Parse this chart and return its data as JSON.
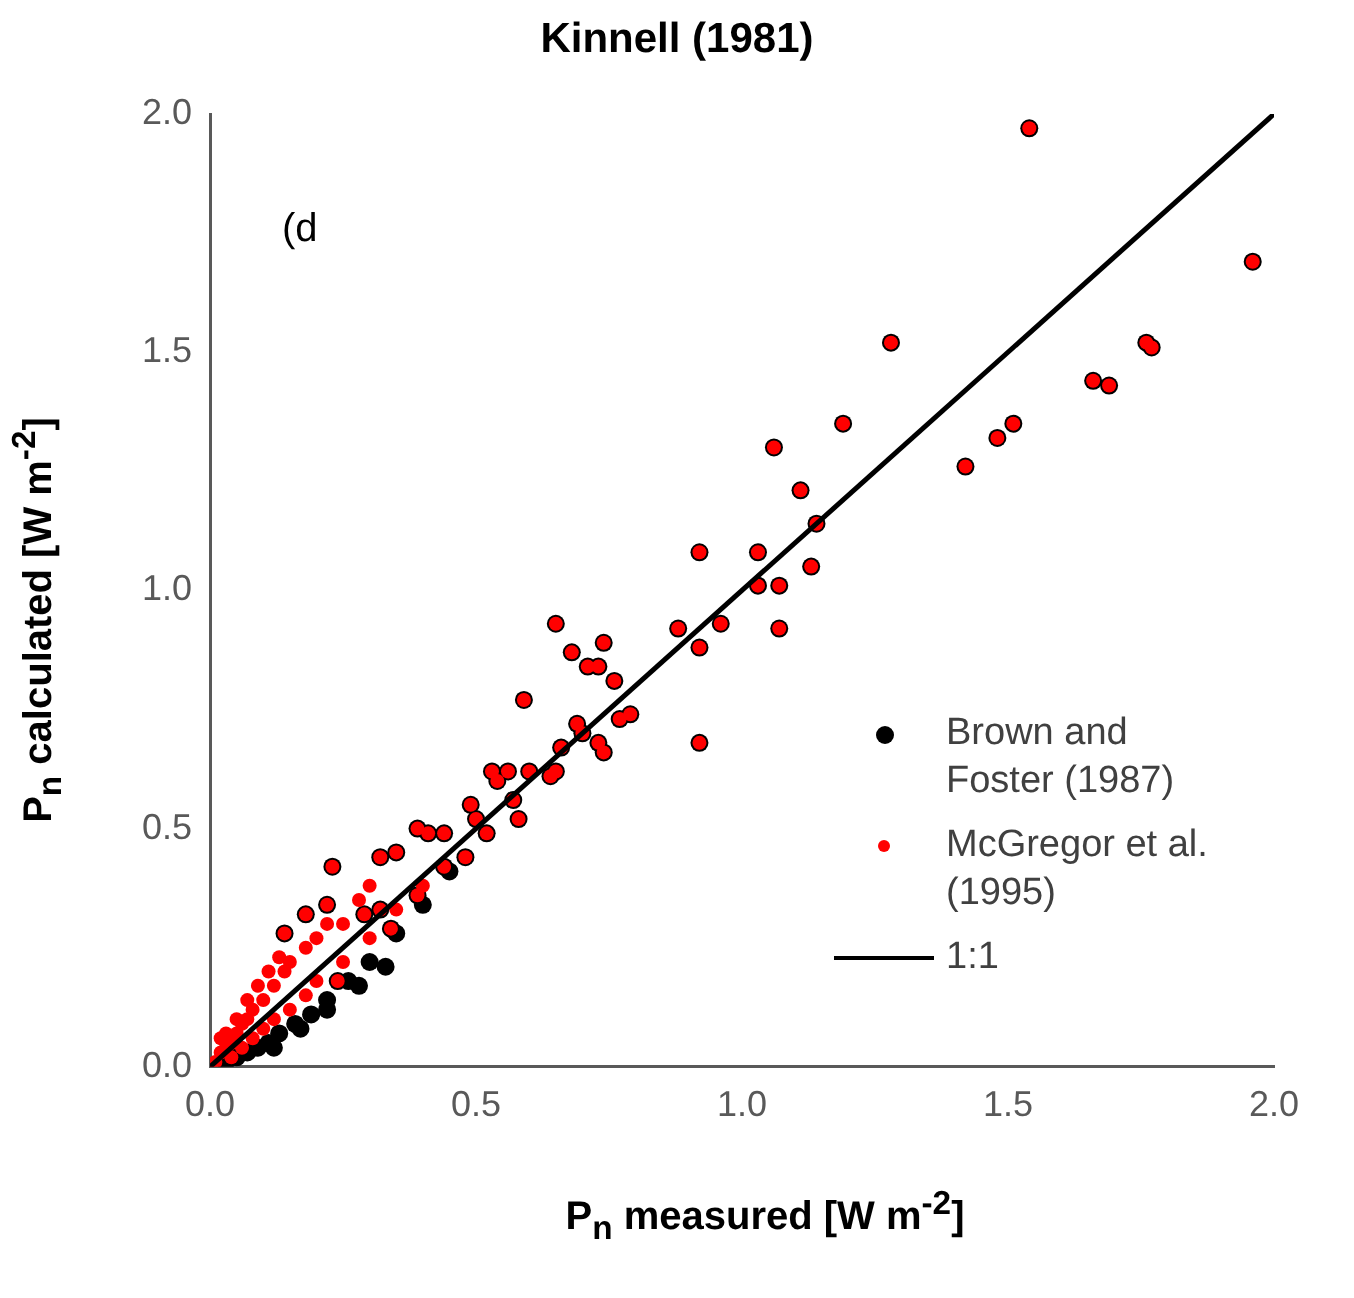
{
  "chart_data": {
    "type": "scatter",
    "title": "Kinnell (1981)",
    "xlabel": "P$_{n}$ measured [W m$^{-2}$]",
    "ylabel": "P$_{n}$ calculated [W m$^{-2}$]",
    "annotations": [
      "(d"
    ],
    "xlim": [
      0,
      2
    ],
    "ylim": [
      0,
      2
    ],
    "xticks": [
      {
        "value": 0,
        "label": "0.0"
      },
      {
        "value": 0.5,
        "label": "0.5"
      },
      {
        "value": 1,
        "label": "1.0"
      },
      {
        "value": 1.5,
        "label": "1.5"
      },
      {
        "value": 2,
        "label": "2.0"
      }
    ],
    "yticks": [
      {
        "value": 0,
        "label": "0.0"
      },
      {
        "value": 0.5,
        "label": "0.5"
      },
      {
        "value": 1,
        "label": "1.0"
      },
      {
        "value": 1.5,
        "label": "1.5"
      },
      {
        "value": 2,
        "label": "2.0"
      }
    ],
    "grid": false,
    "legend": "bottom right",
    "marker": "circle",
    "series": [
      {
        "name": "Brown and Foster (1987)",
        "color": "#000000",
        "x": [
          1.54,
          1.96,
          1.28,
          1.76,
          1.77,
          1.66,
          1.69,
          1.19,
          1.51,
          1.48,
          1.06,
          1.42,
          1.11,
          1.14,
          0.92,
          1.03,
          1.13,
          1.03,
          1.07,
          0.96,
          1.07,
          0.88,
          0.65,
          0.92,
          0.74,
          0.68,
          0.71,
          0.73,
          0.76,
          0.59,
          0.77,
          0.79,
          0.69,
          0.7,
          0.92,
          0.66,
          0.73,
          0.74,
          0.6,
          0.53,
          0.56,
          0.54,
          0.64,
          0.65,
          0.57,
          0.58,
          0.49,
          0.5,
          0.52,
          0.39,
          0.41,
          0.44,
          0.48,
          0.44,
          0.35,
          0.32,
          0.23,
          0.39,
          0.34,
          0.29,
          0.32,
          0.22,
          0.18,
          0.14,
          0.24,
          0.03,
          0.05,
          0.07,
          0.09,
          0.11,
          0.13,
          0.16,
          0.19,
          0.22,
          0.26,
          0.3,
          0.35,
          0.4,
          0.45,
          0.12,
          0.17,
          0.22,
          0.28,
          0.33
        ],
        "values": [
          1.97,
          1.69,
          1.52,
          1.52,
          1.51,
          1.44,
          1.43,
          1.35,
          1.35,
          1.32,
          1.3,
          1.26,
          1.21,
          1.14,
          1.08,
          1.08,
          1.05,
          1.01,
          1.01,
          0.93,
          0.92,
          0.92,
          0.93,
          0.88,
          0.89,
          0.87,
          0.84,
          0.84,
          0.81,
          0.77,
          0.73,
          0.74,
          0.72,
          0.7,
          0.68,
          0.67,
          0.68,
          0.66,
          0.62,
          0.62,
          0.62,
          0.6,
          0.61,
          0.62,
          0.56,
          0.52,
          0.55,
          0.52,
          0.49,
          0.5,
          0.49,
          0.49,
          0.44,
          0.42,
          0.45,
          0.44,
          0.42,
          0.36,
          0.29,
          0.32,
          0.33,
          0.34,
          0.32,
          0.28,
          0.18,
          0.01,
          0.02,
          0.03,
          0.04,
          0.05,
          0.07,
          0.09,
          0.11,
          0.14,
          0.18,
          0.22,
          0.28,
          0.34,
          0.41,
          0.04,
          0.08,
          0.12,
          0.17,
          0.21
        ]
      },
      {
        "name": "McGregor et al. (1995)",
        "color": "#ff0000",
        "x": [
          1.54,
          1.96,
          1.28,
          1.76,
          1.77,
          1.66,
          1.69,
          1.19,
          1.51,
          1.48,
          1.06,
          1.42,
          1.11,
          1.14,
          0.92,
          1.03,
          1.13,
          1.03,
          1.07,
          0.96,
          1.07,
          0.88,
          0.65,
          0.92,
          0.74,
          0.68,
          0.71,
          0.73,
          0.76,
          0.59,
          0.77,
          0.79,
          0.69,
          0.7,
          0.92,
          0.66,
          0.73,
          0.74,
          0.6,
          0.53,
          0.56,
          0.54,
          0.64,
          0.65,
          0.57,
          0.58,
          0.49,
          0.5,
          0.52,
          0.39,
          0.41,
          0.44,
          0.48,
          0.44,
          0.35,
          0.32,
          0.23,
          0.39,
          0.34,
          0.29,
          0.32,
          0.22,
          0.18,
          0.14,
          0.24,
          0.01,
          0.02,
          0.03,
          0.04,
          0.05,
          0.06,
          0.07,
          0.08,
          0.1,
          0.12,
          0.14,
          0.15,
          0.18,
          0.2,
          0.22,
          0.25,
          0.28,
          0.3,
          0.03,
          0.05,
          0.07,
          0.09,
          0.11,
          0.13,
          0.02,
          0.04,
          0.06,
          0.08,
          0.1,
          0.12,
          0.15,
          0.18,
          0.2,
          0.25,
          0.3,
          0.35,
          0.4
        ],
        "values": [
          1.97,
          1.69,
          1.52,
          1.52,
          1.51,
          1.44,
          1.43,
          1.35,
          1.35,
          1.32,
          1.3,
          1.26,
          1.21,
          1.14,
          1.08,
          1.08,
          1.05,
          1.01,
          1.01,
          0.93,
          0.92,
          0.92,
          0.93,
          0.88,
          0.89,
          0.87,
          0.84,
          0.84,
          0.81,
          0.77,
          0.73,
          0.74,
          0.72,
          0.7,
          0.68,
          0.67,
          0.68,
          0.66,
          0.62,
          0.62,
          0.62,
          0.6,
          0.61,
          0.62,
          0.56,
          0.52,
          0.55,
          0.52,
          0.49,
          0.5,
          0.49,
          0.49,
          0.44,
          0.42,
          0.45,
          0.44,
          0.42,
          0.36,
          0.29,
          0.32,
          0.33,
          0.34,
          0.32,
          0.28,
          0.18,
          0.01,
          0.03,
          0.04,
          0.05,
          0.07,
          0.09,
          0.1,
          0.12,
          0.14,
          0.17,
          0.2,
          0.22,
          0.25,
          0.27,
          0.3,
          0.3,
          0.35,
          0.38,
          0.07,
          0.1,
          0.14,
          0.17,
          0.2,
          0.23,
          0.06,
          0.02,
          0.04,
          0.06,
          0.08,
          0.1,
          0.12,
          0.15,
          0.18,
          0.22,
          0.27,
          0.33,
          0.38
        ]
      },
      {
        "name": "1:1",
        "type": "line",
        "marker": "none",
        "color": "#000000",
        "x": [
          0,
          2
        ],
        "values": [
          0,
          2
        ]
      }
    ]
  }
}
